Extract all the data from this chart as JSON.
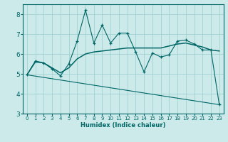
{
  "xlabel": "Humidex (Indice chaleur)",
  "bg_color": "#cceaea",
  "line_color": "#006666",
  "grid_color": "#99cccc",
  "xlim": [
    -0.5,
    23.5
  ],
  "ylim": [
    3,
    8.5
  ],
  "yticks": [
    3,
    4,
    5,
    6,
    7,
    8
  ],
  "xticks": [
    0,
    1,
    2,
    3,
    4,
    5,
    6,
    7,
    8,
    9,
    10,
    11,
    12,
    13,
    14,
    15,
    16,
    17,
    18,
    19,
    20,
    21,
    22,
    23
  ],
  "line1_x": [
    0,
    1,
    2,
    3,
    4,
    5,
    6,
    7,
    8,
    9,
    10,
    11,
    12,
    13,
    14,
    15,
    16,
    17,
    18,
    19,
    20,
    21,
    22,
    23
  ],
  "line1_y": [
    4.95,
    5.65,
    5.55,
    5.25,
    4.9,
    5.5,
    6.65,
    8.2,
    6.55,
    7.45,
    6.55,
    7.05,
    7.05,
    6.1,
    5.1,
    6.05,
    5.85,
    5.95,
    6.65,
    6.7,
    6.5,
    6.2,
    6.2,
    3.45
  ],
  "line2_x": [
    0,
    23
  ],
  "line2_y": [
    4.95,
    3.45
  ],
  "line3_x": [
    0,
    1,
    2,
    3,
    4,
    5,
    6,
    7,
    8,
    9,
    10,
    11,
    12,
    13,
    14,
    15,
    16,
    17,
    18,
    19,
    20,
    21,
    22,
    23
  ],
  "line3_y": [
    4.95,
    5.6,
    5.55,
    5.3,
    5.05,
    5.3,
    5.75,
    6.0,
    6.1,
    6.15,
    6.2,
    6.25,
    6.3,
    6.3,
    6.3,
    6.3,
    6.3,
    6.4,
    6.5,
    6.55,
    6.45,
    6.35,
    6.2,
    6.15
  ]
}
